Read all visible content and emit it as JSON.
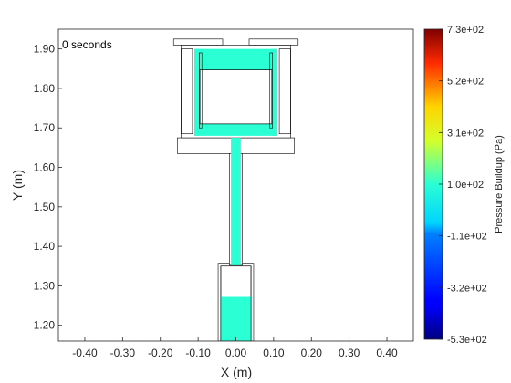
{
  "chart_data": {
    "type": "heatmap",
    "title": "",
    "annotation": "0 seconds",
    "xlabel": "X (m)",
    "ylabel": "Y (m)",
    "xlim": [
      -0.47,
      0.47
    ],
    "ylim": [
      1.16,
      1.95
    ],
    "x_ticks": [
      -0.4,
      -0.3,
      -0.2,
      -0.1,
      0.0,
      0.1,
      0.2,
      0.3,
      0.4
    ],
    "x_tick_labels": [
      "-0.40",
      "-0.30",
      "-0.20",
      "-0.10",
      "0.00",
      "0.10",
      "0.20",
      "0.30",
      "0.40"
    ],
    "y_ticks": [
      1.2,
      1.3,
      1.4,
      1.5,
      1.6,
      1.7,
      1.8,
      1.9
    ],
    "y_tick_labels": [
      "1.20",
      "1.30",
      "1.40",
      "1.50",
      "1.60",
      "1.70",
      "1.80",
      "1.90"
    ],
    "grid": false,
    "fill_color": "#2bffd4",
    "colorbar": {
      "label": "Pressure Buildup (Pa)",
      "range": [
        -530,
        730
      ],
      "ticks": [
        -530,
        -320,
        -110,
        100,
        310,
        520,
        730
      ],
      "tick_labels": [
        "-5.3e+02",
        "-3.2e+02",
        "-1.1e+02",
        "1.0e+02",
        "3.1e+02",
        "5.2e+02",
        "7.3e+02"
      ],
      "colormap": "jet"
    },
    "fluid_regions": [
      {
        "name": "reservoir-bottom",
        "x": [
          -0.04,
          0.04
        ],
        "y": [
          1.16,
          1.272
        ]
      },
      {
        "name": "pipe",
        "x": [
          -0.013,
          0.013
        ],
        "y": [
          1.352,
          1.675
        ]
      },
      {
        "name": "tank-bottom",
        "x": [
          -0.11,
          0.11
        ],
        "y": [
          1.68,
          1.71
        ]
      },
      {
        "name": "tank-top",
        "x": [
          -0.11,
          0.11
        ],
        "y": [
          1.847,
          1.9
        ]
      },
      {
        "name": "tank-left-wall",
        "x": [
          -0.11,
          -0.095
        ],
        "y": [
          1.68,
          1.9
        ]
      },
      {
        "name": "tank-right-wall",
        "x": [
          0.095,
          0.11
        ],
        "y": [
          1.68,
          1.9
        ]
      }
    ],
    "outline_regions": [
      {
        "name": "reservoir-outer",
        "x": [
          -0.047,
          0.047
        ],
        "y": [
          1.16,
          1.357
        ]
      },
      {
        "name": "reservoir-inner",
        "x": [
          -0.04,
          0.04
        ],
        "y": [
          1.16,
          1.35
        ]
      },
      {
        "name": "pipe-outer",
        "x": [
          -0.017,
          0.017
        ],
        "y": [
          1.352,
          1.675
        ]
      },
      {
        "name": "base-plate",
        "x": [
          -0.155,
          0.155
        ],
        "y": [
          1.635,
          1.675
        ]
      },
      {
        "name": "tank-frame",
        "x": [
          -0.145,
          0.145
        ],
        "y": [
          1.675,
          1.91
        ]
      },
      {
        "name": "tank-inner",
        "x": [
          -0.095,
          0.095
        ],
        "y": [
          1.71,
          1.847
        ]
      },
      {
        "name": "post-left",
        "x": [
          -0.097,
          -0.09
        ],
        "y": [
          1.7,
          1.89
        ]
      },
      {
        "name": "post-right",
        "x": [
          0.09,
          0.097
        ],
        "y": [
          1.7,
          1.89
        ]
      },
      {
        "name": "side-block-left",
        "x": [
          -0.145,
          -0.115
        ],
        "y": [
          1.685,
          1.9
        ]
      },
      {
        "name": "side-block-right",
        "x": [
          0.115,
          0.145
        ],
        "y": [
          1.685,
          1.9
        ]
      },
      {
        "name": "top-plate-left",
        "x": [
          -0.165,
          -0.035
        ],
        "y": [
          1.91,
          1.925
        ]
      },
      {
        "name": "top-plate-right",
        "x": [
          0.035,
          0.165
        ],
        "y": [
          1.91,
          1.925
        ]
      }
    ]
  }
}
